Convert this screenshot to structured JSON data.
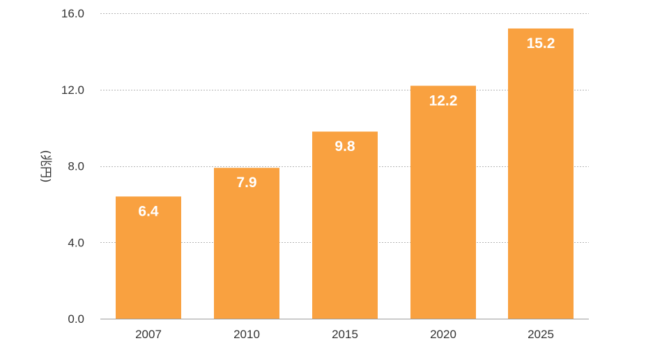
{
  "chart_data": {
    "type": "bar",
    "title": "",
    "xlabel": "",
    "ylabel": "(兆円)",
    "categories": [
      "2007",
      "2010",
      "2015",
      "2020",
      "2025"
    ],
    "values": [
      6.4,
      7.9,
      9.8,
      12.2,
      15.2
    ],
    "value_labels": [
      "6.4",
      "7.9",
      "9.8",
      "12.2",
      "15.2"
    ],
    "ylim": [
      0,
      16
    ],
    "yticks": [
      0,
      4,
      8,
      12,
      16
    ],
    "ytick_labels": [
      "0.0",
      "4.0",
      "8.0",
      "12.0",
      "16.0"
    ],
    "grid": true,
    "grid_style": "dotted",
    "legend": false,
    "bar_color": "#f9a140",
    "value_label_color": "#ffffff"
  }
}
